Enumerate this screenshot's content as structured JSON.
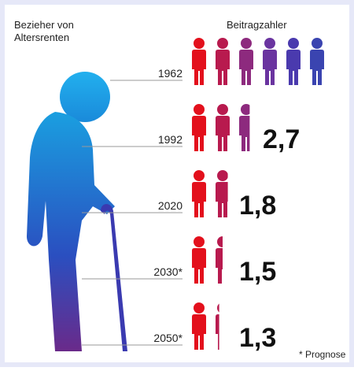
{
  "chart_data": {
    "type": "pictogram",
    "left_label": [
      "Bezieher von",
      "Altersrenten"
    ],
    "right_label": "Beitragzahler",
    "categories": [
      "1962",
      "1992",
      "2020",
      "2030*",
      "2050*"
    ],
    "values": [
      6,
      2.7,
      1.8,
      1.5,
      1.3
    ],
    "value_labels": [
      null,
      "2,7",
      "1,8",
      "1,5",
      "1,3"
    ],
    "colors": [
      "#e3101c",
      "#b81a4e",
      "#8d2a7e",
      "#6a34a0",
      "#4a3aae",
      "#3a44b0"
    ],
    "note": "* Prognose"
  }
}
